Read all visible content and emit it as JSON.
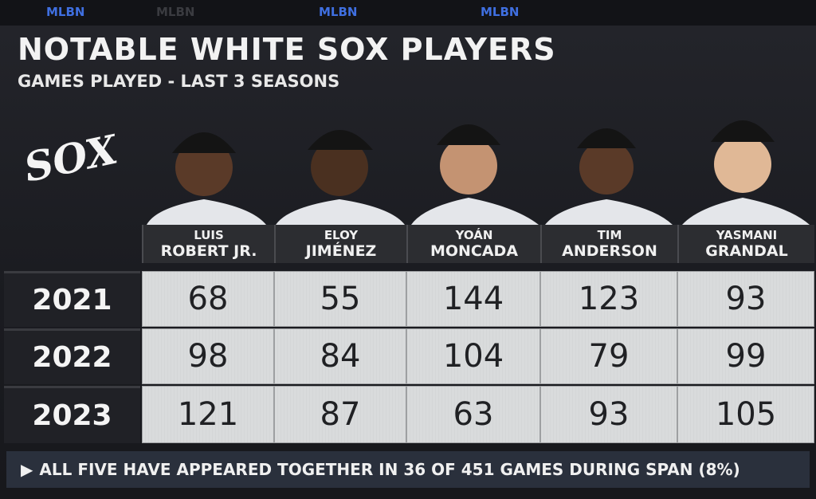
{
  "top_bar": {
    "labels": [
      "MLBN",
      "MLBN",
      "MLBN",
      "MLBN"
    ]
  },
  "header": {
    "title": "NOTABLE WHITE SOX PLAYERS",
    "subtitle": "GAMES PLAYED - LAST 3 SEASONS"
  },
  "logo": "SOX",
  "table": {
    "columns": [
      {
        "first": "LUIS",
        "last": "ROBERT JR."
      },
      {
        "first": "ELOY",
        "last": "JIMÉNEZ"
      },
      {
        "first": "YOÁN",
        "last": "MONCADA"
      },
      {
        "first": "TIM",
        "last": "ANDERSON"
      },
      {
        "first": "YASMANI",
        "last": "GRANDAL"
      }
    ],
    "rows": [
      {
        "season": "2021",
        "values": [
          68,
          55,
          144,
          123,
          93
        ]
      },
      {
        "season": "2022",
        "values": [
          98,
          84,
          104,
          79,
          99
        ]
      },
      {
        "season": "2023",
        "values": [
          121,
          87,
          63,
          93,
          105
        ]
      }
    ]
  },
  "footer": "ALL FIVE HAVE APPEARED TOGETHER IN 36 OF 451 GAMES DURING SPAN (8%)"
}
